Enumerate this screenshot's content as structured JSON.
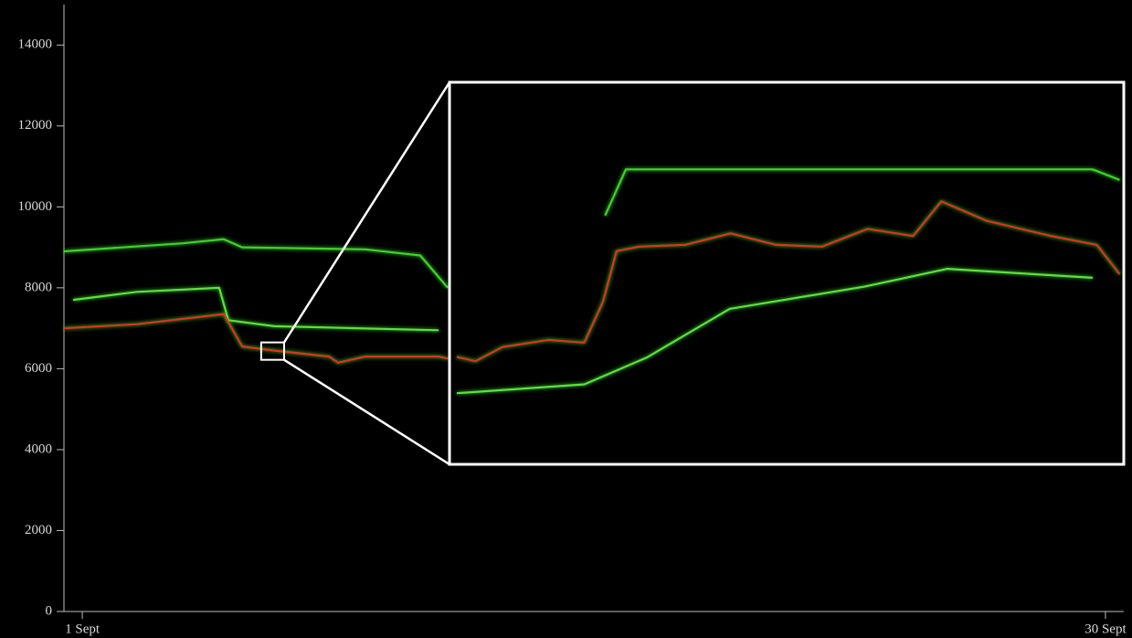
{
  "chart_data": [
    {
      "type": "line",
      "xlim": [
        0.48,
        30.52
      ],
      "ylim": [
        0,
        15000
      ],
      "xticks": [
        {
          "value": 1,
          "label": "1 Sept"
        },
        {
          "value": 30,
          "label": "30 Sept"
        }
      ],
      "yticks": [
        0,
        2000,
        4000,
        6000,
        8000,
        10000,
        12000,
        14000
      ],
      "series": [
        {
          "color": "#3fd12a",
          "x": [
            0.48,
            3.85,
            5.01,
            5.53,
            9.02,
            10.58,
            11.36
          ],
          "values": [
            8900,
            9100,
            9200,
            9000,
            8950,
            8800,
            8000
          ]
        },
        {
          "color": "#5ee03a",
          "x": [
            0.74,
            2.55,
            4.88,
            5.14,
            6.44,
            11.1
          ],
          "values": [
            7700,
            7900,
            8000,
            7200,
            7050,
            6950
          ]
        },
        {
          "color": "#e0301e",
          "x": [
            0.48,
            2.55,
            5.01,
            5.53,
            6.44,
            8.0,
            8.25,
            9.02,
            11.1,
            11.36
          ],
          "values": [
            7000,
            7100,
            7350,
            6550,
            6450,
            6300,
            6150,
            6300,
            6300,
            6250
          ]
        }
      ]
    },
    {
      "type": "line",
      "xlim": [
        6.07,
        6.72
      ],
      "ylim": [
        6220,
        6650
      ],
      "series": [
        {
          "color": "#3fd12a",
          "x": [
            6.22,
            6.24,
            6.69,
            6.716
          ],
          "values": [
            6500,
            6552,
            6552,
            6540
          ]
        },
        {
          "color": "#5ee03a",
          "x": [
            6.077,
            6.2,
            6.26,
            6.34,
            6.47,
            6.55,
            6.69
          ],
          "values": [
            6300,
            6310,
            6340,
            6395,
            6420,
            6440,
            6430
          ]
        },
        {
          "color": "#e0301e",
          "x": [
            6.077,
            6.095,
            6.121,
            6.165,
            6.2,
            6.218,
            6.231,
            6.253,
            6.297,
            6.341,
            6.385,
            6.429,
            6.473,
            6.517,
            6.544,
            6.588,
            6.65,
            6.694,
            6.716
          ],
          "values": [
            6341,
            6336,
            6352,
            6360,
            6357,
            6403,
            6460,
            6465,
            6467,
            6480,
            6467,
            6465,
            6485,
            6477,
            6516,
            6494,
            6477,
            6467,
            6434
          ]
        }
      ]
    }
  ]
}
